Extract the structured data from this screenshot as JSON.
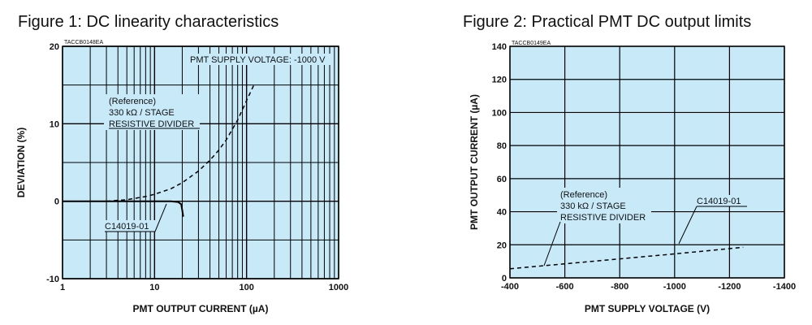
{
  "figure1": {
    "title": "Figure 1: DC linearity characteristics",
    "code": "TACCB0148EA",
    "annotation_top": "PMT SUPPLY VOLTAGE: -1000 V",
    "reference_lines": [
      "(Reference)",
      "330 kΩ / STAGE",
      "RESISTIVE DIVIDER"
    ],
    "product_label": "C14019-01"
  },
  "figure2": {
    "title": "Figure 2: Practical PMT DC output limits",
    "code": "TACCB0149EA",
    "reference_lines": [
      "(Reference)",
      "330 kΩ / STAGE",
      "RESISTIVE DIVIDER"
    ],
    "product_label": "C14019-01"
  },
  "colors": {
    "plot_bg": "#c8e9f8",
    "grid": "#000000",
    "line": "#000000"
  },
  "chart_data": [
    {
      "type": "line",
      "title": "Figure 1: DC linearity characteristics",
      "xlabel": "PMT OUTPUT CURRENT (µA)",
      "ylabel": "DEVIATION (%)",
      "xscale": "log",
      "xlim": [
        1,
        1000
      ],
      "ylim": [
        -10,
        20
      ],
      "xticks": [
        1,
        10,
        100,
        1000
      ],
      "xtick_labels": [
        "1",
        "10",
        "100",
        "1000"
      ],
      "yticks": [
        -10,
        0,
        10,
        20
      ],
      "ytick_labels": [
        "-10",
        "0",
        "10",
        "20"
      ],
      "grid": true,
      "series": [
        {
          "name": "C14019-01",
          "style": "solid",
          "x": [
            1,
            5,
            10,
            15,
            18,
            19.5,
            20,
            20.5
          ],
          "y": [
            0,
            0,
            0,
            0,
            -0.1,
            -0.4,
            -1.2,
            -2.0
          ]
        },
        {
          "name": "(Reference) 330 kΩ / STAGE RESISTIVE DIVIDER",
          "style": "dashed",
          "x": [
            3,
            5,
            8,
            10,
            15,
            20,
            30,
            40,
            50,
            60,
            80,
            100,
            120
          ],
          "y": [
            0,
            0.2,
            0.6,
            0.9,
            1.6,
            2.4,
            3.9,
            5.3,
            6.6,
            7.9,
            10.5,
            13.0,
            15.0
          ]
        }
      ]
    },
    {
      "type": "line",
      "title": "Figure 2: Practical PMT DC output limits",
      "xlabel": "PMT SUPPLY VOLTAGE (V)",
      "ylabel": "PMT OUTPUT CURRENT (µA)",
      "xlim": [
        -400,
        -1400
      ],
      "ylim": [
        0,
        140
      ],
      "xticks": [
        -400,
        -600,
        -800,
        -1000,
        -1200,
        -1400
      ],
      "xtick_labels": [
        "-400",
        "-600",
        "-800",
        "-1000",
        "-1200",
        "-1400"
      ],
      "yticks": [
        0,
        20,
        40,
        60,
        80,
        100,
        120,
        140
      ],
      "ytick_labels": [
        "0",
        "20",
        "40",
        "60",
        "80",
        "100",
        "120",
        "140"
      ],
      "grid": true,
      "series": [
        {
          "name": "(Reference) 330 kΩ / STAGE RESISTIVE DIVIDER",
          "style": "dashed",
          "x": [
            -400,
            -600,
            -800,
            -1000,
            -1250
          ],
          "y": [
            5.5,
            8.5,
            11.5,
            14.5,
            18.5
          ]
        }
      ]
    }
  ]
}
